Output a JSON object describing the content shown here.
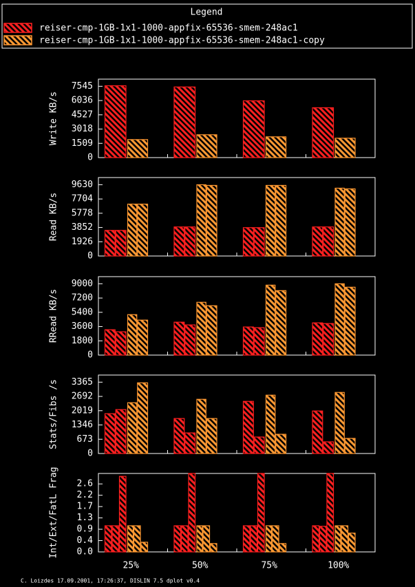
{
  "legend_title": "Legend",
  "footer": "C. Loizdes 17.09.2001, 17:26:37, DISLIN 7.5 dplot v0.4",
  "chart_data": [
    {
      "type": "bar",
      "y_label": "Write KB/s",
      "ylim": [
        0,
        8300
      ],
      "yticks": [
        0,
        1509,
        3018,
        4527,
        6036,
        7545
      ],
      "series": [
        {
          "name": "reiser-cmp-1GB-1x1-1000-appfix-65536-smem-248ac1",
          "color": "#ff2020",
          "values": [
            [
              7600
            ],
            [
              7470
            ],
            [
              6006
            ],
            [
              5274
            ]
          ]
        },
        {
          "name": "reiser-cmp-1GB-1x1-1000-appfix-65536-smem-248ac1-copy",
          "color": "#ff9933",
          "values": [
            [
              1905
            ],
            [
              2417
            ],
            [
              2197
            ],
            [
              2051
            ]
          ]
        }
      ]
    },
    {
      "type": "bar",
      "y_label": "Read KB/s",
      "ylim": [
        0,
        10600
      ],
      "yticks": [
        0,
        1926,
        3852,
        5778,
        7704,
        9630
      ],
      "series": [
        {
          "color": "#ff2020",
          "values": [
            [
              3459,
              3459
            ],
            [
              3927,
              3927
            ],
            [
              3833,
              3833
            ],
            [
              3927,
              3927
            ]
          ]
        },
        {
          "color": "#ff9933",
          "values": [
            [
              7012,
              7012
            ],
            [
              9630,
              9537
            ],
            [
              9537,
              9537
            ],
            [
              9163,
              9069
            ]
          ]
        }
      ]
    },
    {
      "type": "bar",
      "y_label": "RRead KB/s",
      "ylim": [
        0,
        9900
      ],
      "yticks": [
        0,
        1800,
        3600,
        5400,
        7200,
        9000
      ],
      "series": [
        {
          "color": "#ff2020",
          "values": [
            [
              3202,
              2942
            ],
            [
              4154,
              3808
            ],
            [
              3548,
              3462
            ],
            [
              4067,
              3981
            ]
          ]
        },
        {
          "color": "#ff9933",
          "values": [
            [
              5106,
              4413
            ],
            [
              6663,
              6230
            ],
            [
              8827,
              8135
            ],
            [
              9000,
              8567
            ]
          ]
        }
      ]
    },
    {
      "type": "bar",
      "y_label": "Stats/Fibs /s",
      "ylim": [
        0,
        3700
      ],
      "yticks": [
        0,
        673,
        1346,
        2019,
        2692,
        3365
      ],
      "series": [
        {
          "color": "#ff2020",
          "values": [
            [
              1877,
              2071
            ],
            [
              1650,
              971
            ],
            [
              2459,
              777
            ],
            [
              2006,
              550
            ]
          ]
        },
        {
          "color": "#ff9933",
          "values": [
            [
              2395,
              3333
            ],
            [
              2556,
              1650
            ],
            [
              2751,
              906
            ],
            [
              2880,
              712
            ]
          ]
        }
      ]
    },
    {
      "type": "bar",
      "y_label": "Int/Ext/FatL Frag",
      "ylim": [
        0,
        3.0
      ],
      "yticks": [
        {
          "value": 0,
          "label": "0.0"
        },
        {
          "value": 0.4333,
          "label": "0.4"
        },
        {
          "value": 0.8667,
          "label": "0.9"
        },
        1.3,
        {
          "value": 1.7333,
          "label": "1.7"
        },
        {
          "value": 2.1667,
          "label": "2.2"
        },
        2.6
      ],
      "categories": [
        "25%",
        "50%",
        "75%",
        "100%"
      ],
      "series": [
        {
          "color": "#ff2020",
          "values": [
            [
              1.0,
              1.0,
              2.89
            ],
            [
              1.0,
              1.0,
              3.0
            ],
            [
              1.0,
              1.0,
              3.0
            ],
            [
              1.0,
              0.98,
              3.0
            ]
          ]
        },
        {
          "color": "#ff9933",
          "values": [
            [
              1.0,
              1.0,
              0.37
            ],
            [
              1.0,
              1.0,
              0.32
            ],
            [
              1.0,
              1.0,
              0.32
            ],
            [
              1.0,
              1.0,
              0.72
            ]
          ]
        }
      ]
    }
  ]
}
